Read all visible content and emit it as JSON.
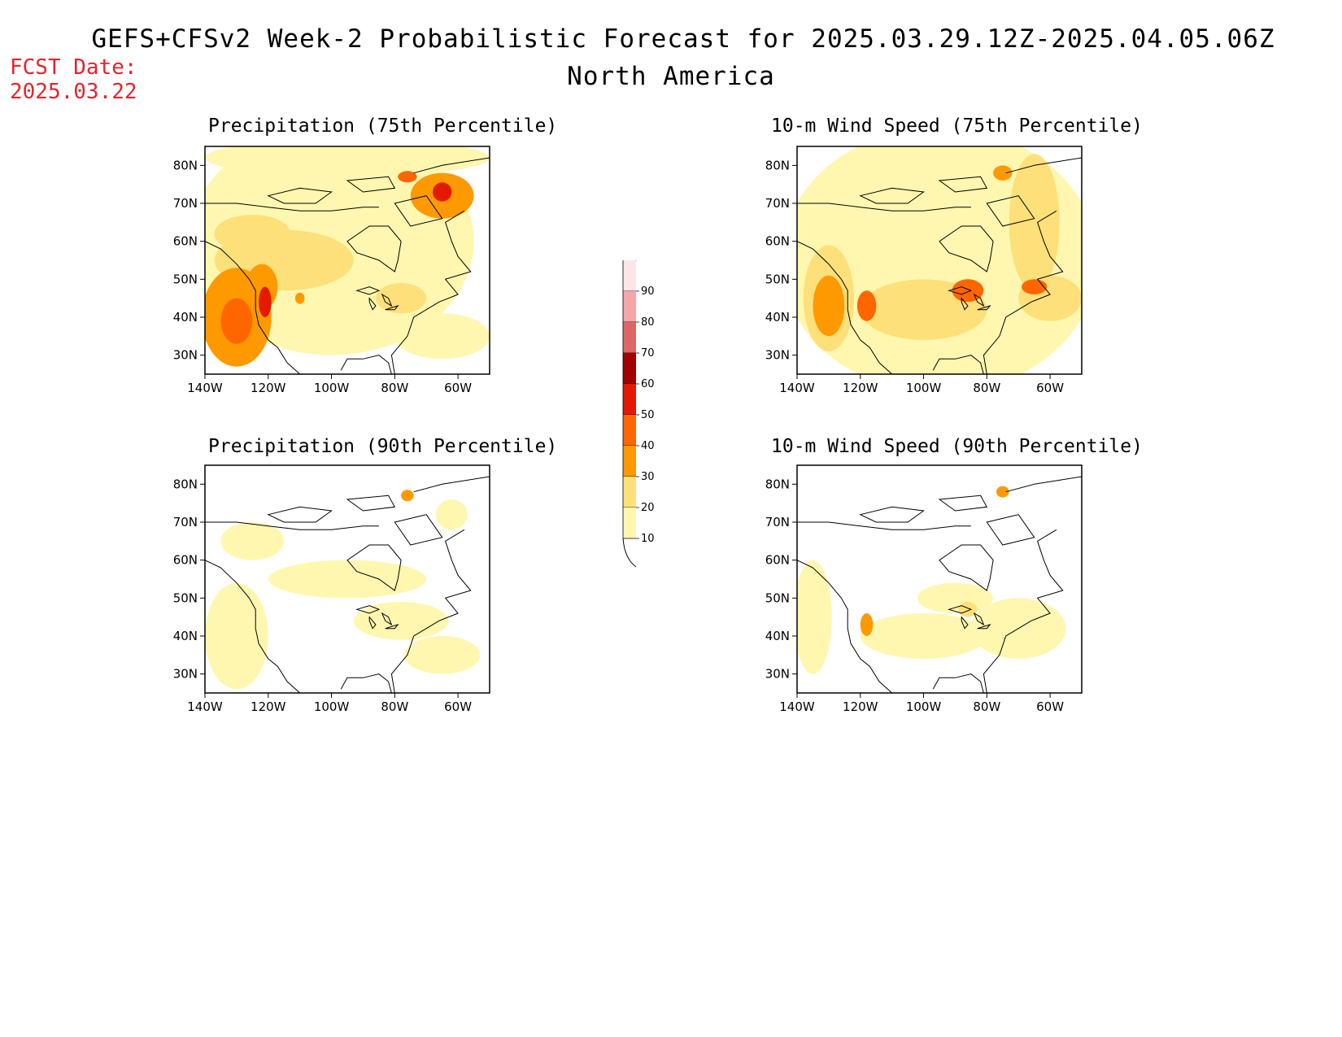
{
  "header": {
    "title": "GEFS+CFSv2 Week-2 Probabilistic Forecast for 2025.03.29.12Z-2025.04.05.06Z",
    "region": "North America",
    "fcst_label": "FCST Date:",
    "fcst_date": "2025.03.22"
  },
  "panels": [
    {
      "id": "precip75",
      "title": "Precipitation (75th Percentile)",
      "blobs": [
        {
          "lon": -100,
          "lat": 60,
          "rx": 45,
          "ry": 30,
          "level": 1
        },
        {
          "lon": -95,
          "lat": 82,
          "rx": 45,
          "ry": 5,
          "level": 1
        },
        {
          "lon": -115,
          "lat": 55,
          "rx": 22,
          "ry": 8,
          "level": 2
        },
        {
          "lon": -85,
          "lat": 55,
          "rx": 20,
          "ry": 6,
          "level": 1
        },
        {
          "lon": -130,
          "lat": 40,
          "rx": 11,
          "ry": 13,
          "level": 3
        },
        {
          "lon": -122,
          "lat": 48,
          "rx": 5,
          "ry": 6,
          "level": 3
        },
        {
          "lon": -125,
          "lat": 62,
          "rx": 12,
          "ry": 5,
          "level": 2
        },
        {
          "lon": -65,
          "lat": 72,
          "rx": 10,
          "ry": 6,
          "level": 3
        },
        {
          "lon": -78,
          "lat": 45,
          "rx": 8,
          "ry": 4,
          "level": 2
        },
        {
          "lon": -65,
          "lat": 35,
          "rx": 15,
          "ry": 6,
          "level": 1
        },
        {
          "lon": -130,
          "lat": 39,
          "rx": 5,
          "ry": 6,
          "level": 4
        },
        {
          "lon": -121,
          "lat": 44,
          "rx": 2,
          "ry": 4,
          "level": 5
        },
        {
          "lon": -65,
          "lat": 73,
          "rx": 3,
          "ry": 2.5,
          "level": 5
        },
        {
          "lon": -76,
          "lat": 77,
          "rx": 3,
          "ry": 1.5,
          "level": 4
        },
        {
          "lon": -110,
          "lat": 45,
          "rx": 1.5,
          "ry": 1.5,
          "level": 3
        }
      ]
    },
    {
      "id": "wind75",
      "title": "10-m Wind Speed (75th Percentile)",
      "blobs": [
        {
          "lon": -95,
          "lat": 55,
          "rx": 50,
          "ry": 35,
          "level": 1
        },
        {
          "lon": -130,
          "lat": 45,
          "rx": 8,
          "ry": 14,
          "level": 2
        },
        {
          "lon": -100,
          "lat": 42,
          "rx": 20,
          "ry": 8,
          "level": 2
        },
        {
          "lon": -65,
          "lat": 65,
          "rx": 8,
          "ry": 18,
          "level": 2
        },
        {
          "lon": -60,
          "lat": 45,
          "rx": 10,
          "ry": 6,
          "level": 2
        },
        {
          "lon": -130,
          "lat": 43,
          "rx": 5,
          "ry": 8,
          "level": 3
        },
        {
          "lon": -118,
          "lat": 43,
          "rx": 3,
          "ry": 4,
          "level": 4
        },
        {
          "lon": -86,
          "lat": 47,
          "rx": 5,
          "ry": 3,
          "level": 4
        },
        {
          "lon": -65,
          "lat": 48,
          "rx": 4,
          "ry": 2,
          "level": 4
        },
        {
          "lon": -75,
          "lat": 78,
          "rx": 3,
          "ry": 2,
          "level": 3
        }
      ]
    },
    {
      "id": "precip90",
      "title": "Precipitation (90th Percentile)",
      "blobs": [
        {
          "lon": -130,
          "lat": 40,
          "rx": 10,
          "ry": 14,
          "level": 1
        },
        {
          "lon": -95,
          "lat": 55,
          "rx": 25,
          "ry": 5,
          "level": 1
        },
        {
          "lon": -78,
          "lat": 44,
          "rx": 15,
          "ry": 5,
          "level": 1
        },
        {
          "lon": -65,
          "lat": 35,
          "rx": 12,
          "ry": 5,
          "level": 1
        },
        {
          "lon": -125,
          "lat": 65,
          "rx": 10,
          "ry": 5,
          "level": 1
        },
        {
          "lon": -62,
          "lat": 72,
          "rx": 5,
          "ry": 4,
          "level": 1
        },
        {
          "lon": -76,
          "lat": 77,
          "rx": 2,
          "ry": 1.5,
          "level": 3
        }
      ]
    },
    {
      "id": "wind90",
      "title": "10-m Wind Speed (90th Percentile)",
      "blobs": [
        {
          "lon": -135,
          "lat": 45,
          "rx": 6,
          "ry": 15,
          "level": 1
        },
        {
          "lon": -100,
          "lat": 40,
          "rx": 20,
          "ry": 6,
          "level": 1
        },
        {
          "lon": -70,
          "lat": 42,
          "rx": 15,
          "ry": 8,
          "level": 1
        },
        {
          "lon": -90,
          "lat": 50,
          "rx": 12,
          "ry": 4,
          "level": 1
        },
        {
          "lon": -118,
          "lat": 43,
          "rx": 2,
          "ry": 3,
          "level": 3
        },
        {
          "lon": -86,
          "lat": 47,
          "rx": 3,
          "ry": 2,
          "level": 2
        },
        {
          "lon": -75,
          "lat": 78,
          "rx": 2,
          "ry": 1.5,
          "level": 3
        }
      ]
    }
  ],
  "axes": {
    "lon_ticks": [
      "140W",
      "120W",
      "100W",
      "80W",
      "60W"
    ],
    "lat_ticks": [
      "80N",
      "70N",
      "60N",
      "50N",
      "40N",
      "30N"
    ],
    "lon_values": [
      -140,
      -120,
      -100,
      -80,
      -60
    ],
    "lat_values": [
      80,
      70,
      60,
      50,
      40,
      30
    ],
    "lon_range": [
      -140,
      -50
    ],
    "lat_range": [
      25,
      85
    ]
  },
  "colorbar": {
    "labels": [
      "90",
      "80",
      "70",
      "60",
      "50",
      "40",
      "30",
      "20",
      "10"
    ],
    "colors": [
      "#fde5e8",
      "#f4a6a8",
      "#e06666",
      "#a50000",
      "#e31a00",
      "#ff6600",
      "#ff9900",
      "#fde07a",
      "#fff7b0"
    ]
  },
  "coastline": {
    "west": [
      [
        -140,
        60
      ],
      [
        -135,
        58
      ],
      [
        -130,
        54
      ],
      [
        -126,
        50
      ],
      [
        -124,
        47
      ],
      [
        -124,
        42
      ],
      [
        -123,
        38
      ],
      [
        -120,
        34
      ],
      [
        -117,
        32
      ],
      [
        -114,
        28
      ],
      [
        -110,
        25
      ]
    ],
    "east": [
      [
        -80,
        25
      ],
      [
        -81,
        30
      ],
      [
        -76,
        35
      ],
      [
        -74,
        40
      ],
      [
        -70,
        42
      ],
      [
        -66,
        44
      ],
      [
        -60,
        46
      ],
      [
        -64,
        50
      ],
      [
        -56,
        52
      ],
      [
        -60,
        56
      ],
      [
        -62,
        60
      ],
      [
        -64,
        65
      ],
      [
        -58,
        68
      ]
    ],
    "hudson": [
      [
        -95,
        60
      ],
      [
        -92,
        57
      ],
      [
        -85,
        55
      ],
      [
        -80,
        52
      ],
      [
        -79,
        55
      ],
      [
        -78,
        60
      ],
      [
        -82,
        64
      ],
      [
        -88,
        64
      ],
      [
        -95,
        60
      ]
    ],
    "gulf": [
      [
        -97,
        26
      ],
      [
        -95,
        29
      ],
      [
        -90,
        29
      ],
      [
        -85,
        30
      ],
      [
        -82,
        28
      ],
      [
        -81,
        25
      ]
    ],
    "greenland": [
      [
        -74,
        78
      ],
      [
        -65,
        80
      ],
      [
        -50,
        82
      ],
      [
        -50,
        78
      ]
    ],
    "arctic": [
      [
        -140,
        70
      ],
      [
        -130,
        70
      ],
      [
        -120,
        69
      ],
      [
        -110,
        68
      ],
      [
        -100,
        68
      ],
      [
        -90,
        69
      ],
      [
        -85,
        69
      ]
    ],
    "islands": [
      [
        [
          -120,
          72
        ],
        [
          -110,
          74
        ],
        [
          -100,
          73
        ],
        [
          -105,
          70
        ],
        [
          -115,
          70
        ],
        [
          -120,
          72
        ]
      ],
      [
        [
          -95,
          76
        ],
        [
          -82,
          77
        ],
        [
          -80,
          74
        ],
        [
          -90,
          73
        ],
        [
          -95,
          76
        ]
      ],
      [
        [
          -80,
          70
        ],
        [
          -70,
          72
        ],
        [
          -65,
          66
        ],
        [
          -75,
          64
        ],
        [
          -80,
          70
        ]
      ]
    ],
    "lakes": [
      [
        [
          -92,
          47
        ],
        [
          -88,
          48
        ],
        [
          -85,
          47
        ],
        [
          -88,
          46
        ],
        [
          -92,
          47
        ]
      ],
      [
        [
          -88,
          45
        ],
        [
          -86,
          43
        ],
        [
          -87,
          42
        ],
        [
          -88,
          44
        ],
        [
          -88,
          45
        ]
      ],
      [
        [
          -84,
          46
        ],
        [
          -82,
          45
        ],
        [
          -81,
          43
        ],
        [
          -83,
          44
        ],
        [
          -84,
          46
        ]
      ],
      [
        [
          -83,
          42
        ],
        [
          -79,
          43
        ],
        [
          -80,
          42
        ],
        [
          -83,
          42
        ]
      ]
    ]
  }
}
